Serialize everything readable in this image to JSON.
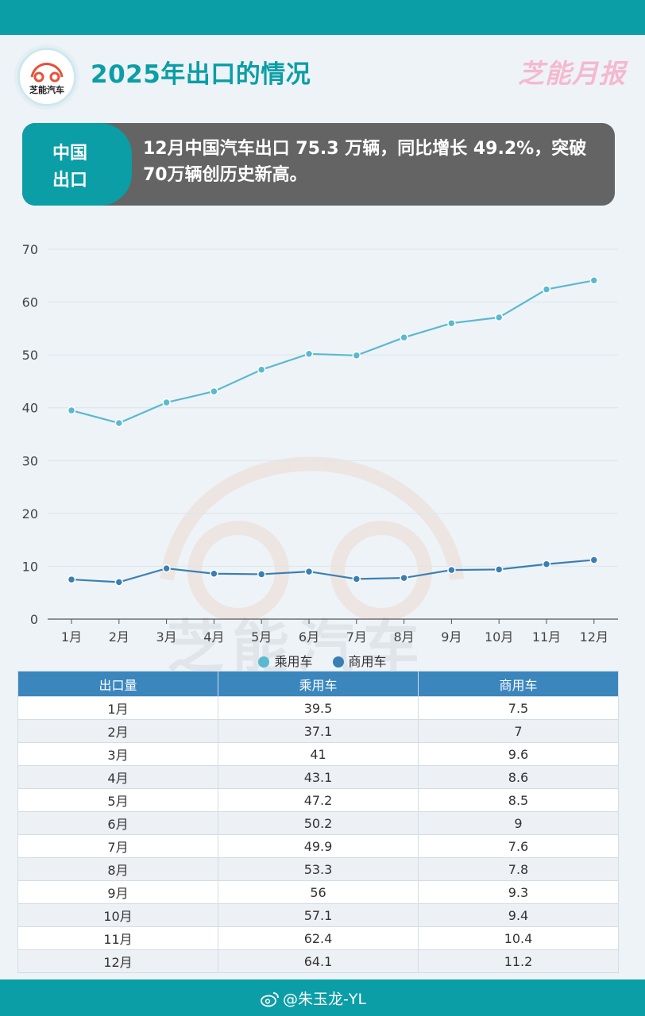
{
  "header": {
    "logo_text": "芝能汽车",
    "title": "2025年出口的情况",
    "brand": "芝能月报"
  },
  "summary": {
    "tag_line1": "中国",
    "tag_line2": "出口",
    "text": "12月中国汽车出口 75.3 万辆，同比增长 49.2%，突破70万辆创历史新高。"
  },
  "colors": {
    "accent": "#0b9ea6",
    "passenger": "#5bb9cf",
    "commercial": "#3a7fb4",
    "summary_bg": "#646464",
    "table_header": "#3a86bd"
  },
  "chart_data": {
    "type": "line",
    "title": "",
    "xlabel": "",
    "ylabel": "",
    "ylim": [
      0,
      70
    ],
    "yticks": [
      0,
      10,
      20,
      30,
      40,
      50,
      60,
      70
    ],
    "categories": [
      "1月",
      "2月",
      "3月",
      "4月",
      "5月",
      "6月",
      "7月",
      "8月",
      "9月",
      "10月",
      "11月",
      "12月"
    ],
    "series": [
      {
        "name": "乘用车",
        "values": [
          39.5,
          37.1,
          41,
          43.1,
          47.2,
          50.2,
          49.9,
          53.3,
          56,
          57.1,
          62.4,
          64.1
        ]
      },
      {
        "name": "商用车",
        "values": [
          7.5,
          7,
          9.6,
          8.6,
          8.5,
          9,
          7.6,
          7.8,
          9.3,
          9.4,
          10.4,
          11.2
        ]
      }
    ],
    "legend": "bottom",
    "grid": true
  },
  "table": {
    "headers": [
      "出口量",
      "乘用车",
      "商用车"
    ],
    "rows": [
      [
        "1月",
        "39.5",
        "7.5"
      ],
      [
        "2月",
        "37.1",
        "7"
      ],
      [
        "3月",
        "41",
        "9.6"
      ],
      [
        "4月",
        "43.1",
        "8.6"
      ],
      [
        "5月",
        "47.2",
        "8.5"
      ],
      [
        "6月",
        "50.2",
        "9"
      ],
      [
        "7月",
        "49.9",
        "7.6"
      ],
      [
        "8月",
        "53.3",
        "7.8"
      ],
      [
        "9月",
        "56",
        "9.3"
      ],
      [
        "10月",
        "57.1",
        "9.4"
      ],
      [
        "11月",
        "62.4",
        "10.4"
      ],
      [
        "12月",
        "64.1",
        "11.2"
      ]
    ]
  },
  "footer": {
    "weibo_handle": "@朱玉龙-YL"
  }
}
